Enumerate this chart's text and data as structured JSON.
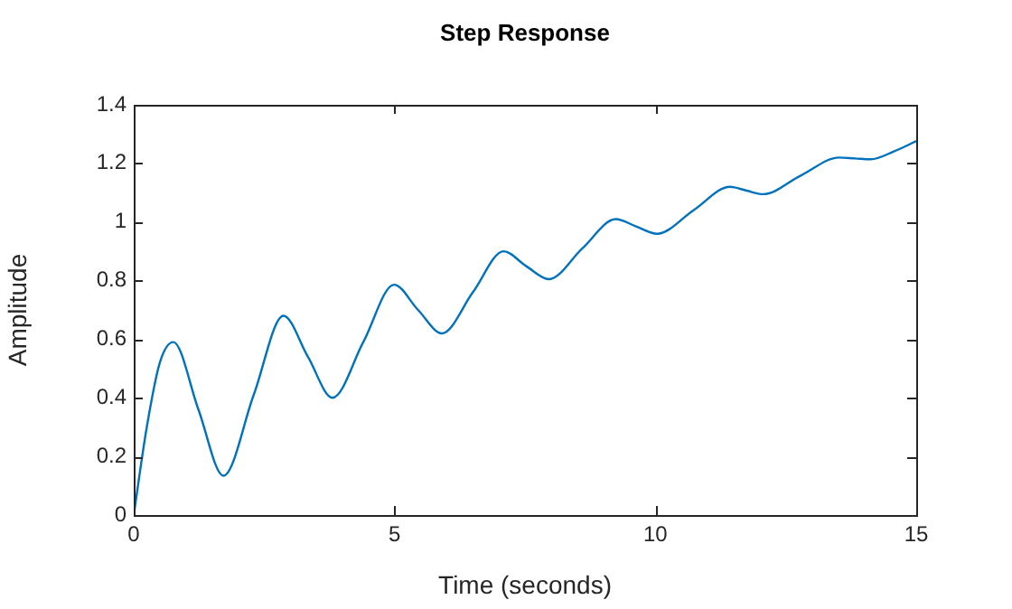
{
  "chart_data": {
    "type": "line",
    "title": "Step Response",
    "xlabel": "Time (seconds)",
    "ylabel": "Amplitude",
    "xlim": [
      0,
      15
    ],
    "xticks": [
      0,
      5,
      10,
      15
    ],
    "ylim": [
      0,
      1.4
    ],
    "yticks": [
      0,
      0.2,
      0.4,
      0.6,
      0.8,
      1,
      1.2,
      1.4
    ],
    "grid": false,
    "legend": false,
    "marker": "none",
    "line_style": "solid",
    "series": [
      {
        "color": "#0072bd",
        "x": [
          0,
          0.25,
          0.5,
          0.76,
          1.24,
          1.72,
          2.3,
          2.87,
          3.34,
          3.81,
          4.4,
          4.99,
          5.45,
          5.91,
          6.5,
          7.09,
          7.52,
          7.96,
          8.6,
          9.24,
          9.63,
          10.03,
          10.73,
          11.43,
          11.75,
          12.06,
          12.8,
          13.52,
          13.83,
          14.13,
          14.56,
          15
        ],
        "values": [
          0,
          0.3,
          0.52,
          0.59,
          0.36,
          0.134,
          0.41,
          0.68,
          0.54,
          0.4,
          0.59,
          0.786,
          0.7,
          0.62,
          0.76,
          0.9,
          0.85,
          0.805,
          0.91,
          1.01,
          0.985,
          0.96,
          1.04,
          1.12,
          1.107,
          1.095,
          1.16,
          1.22,
          1.217,
          1.214,
          1.24,
          1.276
        ]
      }
    ]
  }
}
